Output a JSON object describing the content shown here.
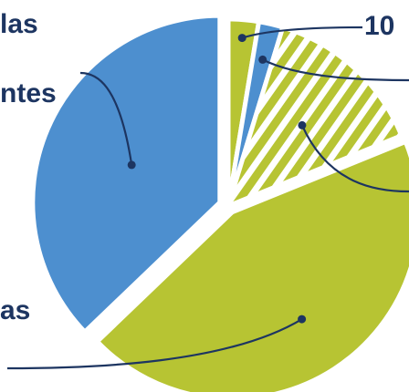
{
  "chart_data": {
    "type": "pie",
    "title": "",
    "slices": [
      {
        "label": "10",
        "value": 2.5,
        "color": "#b7c433",
        "pattern": "solid"
      },
      {
        "label": "",
        "value": 2.0,
        "color": "#4d8fcf",
        "pattern": "solid"
      },
      {
        "label": "",
        "value": 13.5,
        "color": "#b7c433",
        "pattern": "hatched"
      },
      {
        "label": "as",
        "value": 42.0,
        "color": "#b7c433",
        "pattern": "solid"
      },
      {
        "label": "ntes",
        "value": 35.5,
        "color": "#4d8fcf",
        "pattern": "solid"
      }
    ],
    "label_fragments": [
      "las",
      "ntes",
      "as",
      "10"
    ],
    "legend": "none",
    "label_color": "#1d3561",
    "leader_color": "#1d3561"
  }
}
